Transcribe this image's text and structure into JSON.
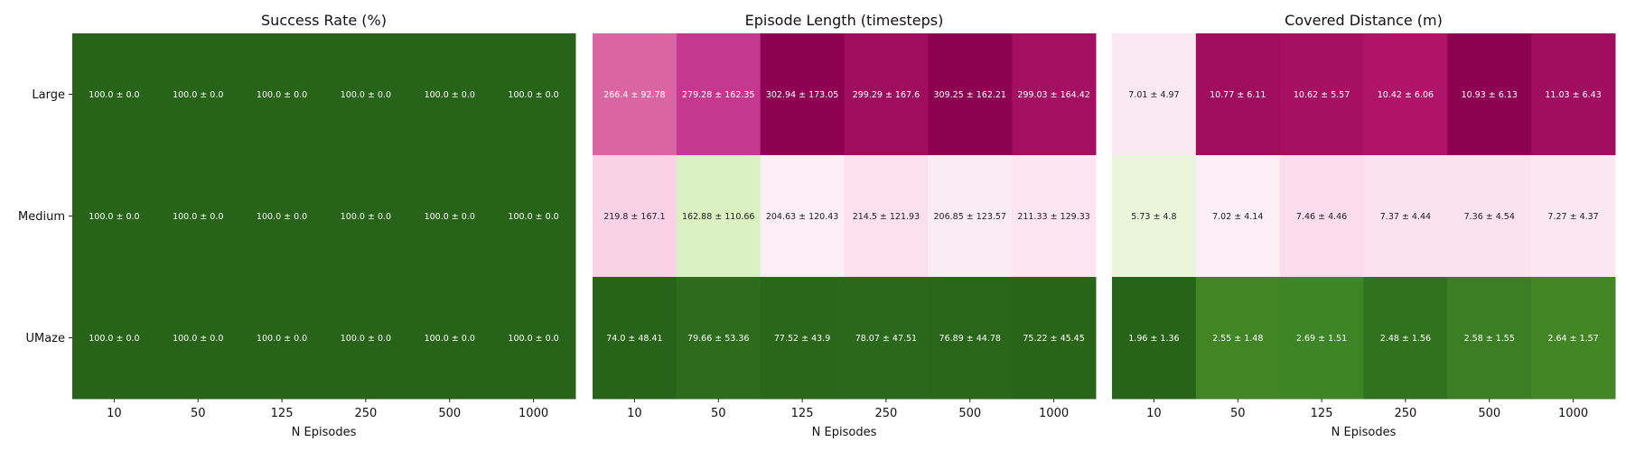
{
  "chart_data": [
    {
      "type": "heatmap",
      "title": "Success Rate (%)",
      "xlabel": "N Episodes",
      "ylabel": "",
      "x_categories": [
        "10",
        "50",
        "125",
        "250",
        "500",
        "1000"
      ],
      "y_categories": [
        "Large",
        "Medium",
        "UMaze"
      ],
      "colormap": "PiYG",
      "values": [
        [
          100.0,
          100.0,
          100.0,
          100.0,
          100.0,
          100.0
        ],
        [
          100.0,
          100.0,
          100.0,
          100.0,
          100.0,
          100.0
        ],
        [
          100.0,
          100.0,
          100.0,
          100.0,
          100.0,
          100.0
        ]
      ],
      "std": [
        [
          0.0,
          0.0,
          0.0,
          0.0,
          0.0,
          0.0
        ],
        [
          0.0,
          0.0,
          0.0,
          0.0,
          0.0,
          0.0
        ],
        [
          0.0,
          0.0,
          0.0,
          0.0,
          0.0,
          0.0
        ]
      ],
      "labels": [
        [
          "100.0 ± 0.0",
          "100.0 ± 0.0",
          "100.0 ± 0.0",
          "100.0 ± 0.0",
          "100.0 ± 0.0",
          "100.0 ± 0.0"
        ],
        [
          "100.0 ± 0.0",
          "100.0 ± 0.0",
          "100.0 ± 0.0",
          "100.0 ± 0.0",
          "100.0 ± 0.0",
          "100.0 ± 0.0"
        ],
        [
          "100.0 ± 0.0",
          "100.0 ± 0.0",
          "100.0 ± 0.0",
          "100.0 ± 0.0",
          "100.0 ± 0.0",
          "100.0 ± 0.0"
        ]
      ],
      "cell_colors": [
        [
          "#276419",
          "#276419",
          "#276419",
          "#276419",
          "#276419",
          "#276419"
        ],
        [
          "#276419",
          "#276419",
          "#276419",
          "#276419",
          "#276419",
          "#276419"
        ],
        [
          "#276419",
          "#276419",
          "#276419",
          "#276419",
          "#276419",
          "#276419"
        ]
      ],
      "text_colors": [
        [
          "#ffffff",
          "#ffffff",
          "#ffffff",
          "#ffffff",
          "#ffffff",
          "#ffffff"
        ],
        [
          "#ffffff",
          "#ffffff",
          "#ffffff",
          "#ffffff",
          "#ffffff",
          "#ffffff"
        ],
        [
          "#ffffff",
          "#ffffff",
          "#ffffff",
          "#ffffff",
          "#ffffff",
          "#ffffff"
        ]
      ]
    },
    {
      "type": "heatmap",
      "title": "Episode Length (timesteps)",
      "xlabel": "N Episodes",
      "ylabel": "",
      "x_categories": [
        "10",
        "50",
        "125",
        "250",
        "500",
        "1000"
      ],
      "y_categories": [
        "Large",
        "Medium",
        "UMaze"
      ],
      "colormap": "PiYG",
      "values": [
        [
          266.4,
          279.28,
          302.94,
          299.29,
          309.25,
          299.03
        ],
        [
          219.8,
          162.88,
          204.63,
          214.5,
          206.85,
          211.33
        ],
        [
          74.0,
          79.66,
          77.52,
          78.07,
          76.89,
          75.22
        ]
      ],
      "std": [
        [
          92.78,
          162.35,
          173.05,
          167.6,
          162.21,
          164.42
        ],
        [
          167.1,
          110.66,
          120.43,
          121.93,
          123.57,
          129.33
        ],
        [
          48.41,
          53.36,
          43.9,
          47.51,
          44.78,
          45.45
        ]
      ],
      "labels": [
        [
          "266.4 ± 92.78",
          "279.28 ± 162.35",
          "302.94 ± 173.05",
          "299.29 ± 167.6",
          "309.25 ± 162.21",
          "299.03 ± 164.42"
        ],
        [
          "219.8 ± 167.1",
          "162.88 ± 110.66",
          "204.63 ± 120.43",
          "214.5 ± 121.93",
          "206.85 ± 123.57",
          "211.33 ± 129.33"
        ],
        [
          "74.0 ± 48.41",
          "79.66 ± 53.36",
          "77.52 ± 43.9",
          "78.07 ± 47.51",
          "76.89 ± 44.78",
          "75.22 ± 45.45"
        ]
      ],
      "cell_colors": [
        [
          "#d966a3",
          "#c6388f",
          "#8e0152",
          "#a00d5f",
          "#8e0152",
          "#a50f61"
        ],
        [
          "#f9d2e8",
          "#d9f0c0",
          "#fbeef5",
          "#fde0ee",
          "#fbecf4",
          "#fce5f0"
        ],
        [
          "#276419",
          "#2d6b1d",
          "#2a671b",
          "#2a681b",
          "#296619",
          "#286519"
        ]
      ],
      "text_colors": [
        [
          "#ffffff",
          "#ffffff",
          "#ffffff",
          "#ffffff",
          "#ffffff",
          "#ffffff"
        ],
        [
          "#222222",
          "#222222",
          "#222222",
          "#222222",
          "#222222",
          "#222222"
        ],
        [
          "#ffffff",
          "#ffffff",
          "#ffffff",
          "#ffffff",
          "#ffffff",
          "#ffffff"
        ]
      ]
    },
    {
      "type": "heatmap",
      "title": "Covered Distance (m)",
      "xlabel": "N Episodes",
      "ylabel": "",
      "x_categories": [
        "10",
        "50",
        "125",
        "250",
        "500",
        "1000"
      ],
      "y_categories": [
        "Large",
        "Medium",
        "UMaze"
      ],
      "colormap": "PiYG",
      "values": [
        [
          7.01,
          10.77,
          10.62,
          10.42,
          10.93,
          11.03
        ],
        [
          5.73,
          7.02,
          7.46,
          7.37,
          7.36,
          7.27
        ],
        [
          1.96,
          2.55,
          2.69,
          2.48,
          2.58,
          2.64
        ]
      ],
      "std": [
        [
          4.97,
          6.11,
          5.57,
          6.06,
          6.13,
          6.43
        ],
        [
          4.8,
          4.14,
          4.46,
          4.44,
          4.54,
          4.37
        ],
        [
          1.36,
          1.48,
          1.51,
          1.56,
          1.55,
          1.57
        ]
      ],
      "labels": [
        [
          "7.01 ± 4.97",
          "10.77 ± 6.11",
          "10.62 ± 5.57",
          "10.42 ± 6.06",
          "10.93 ± 6.13",
          "11.03 ± 6.43"
        ],
        [
          "5.73 ± 4.8",
          "7.02 ± 4.14",
          "7.46 ± 4.46",
          "7.37 ± 4.44",
          "7.36 ± 4.54",
          "7.27 ± 4.37"
        ],
        [
          "1.96 ± 1.36",
          "2.55 ± 1.48",
          "2.69 ± 1.51",
          "2.48 ± 1.56",
          "2.58 ± 1.55",
          "2.64 ± 1.57"
        ]
      ],
      "cell_colors": [
        [
          "#fae8f2",
          "#a00d5f",
          "#a60f62",
          "#b0136a",
          "#8e0152",
          "#a10d60"
        ],
        [
          "#eaf5da",
          "#fbeef5",
          "#fbdcec",
          "#fce1ef",
          "#fce1ef",
          "#fbe7f1"
        ],
        [
          "#276419",
          "#428524",
          "#3d8526",
          "#31721f",
          "#3b7e23",
          "#428524"
        ]
      ],
      "text_colors": [
        [
          "#222222",
          "#ffffff",
          "#ffffff",
          "#ffffff",
          "#ffffff",
          "#ffffff"
        ],
        [
          "#222222",
          "#222222",
          "#222222",
          "#222222",
          "#222222",
          "#222222"
        ],
        [
          "#ffffff",
          "#ffffff",
          "#ffffff",
          "#ffffff",
          "#ffffff",
          "#ffffff"
        ]
      ]
    }
  ]
}
